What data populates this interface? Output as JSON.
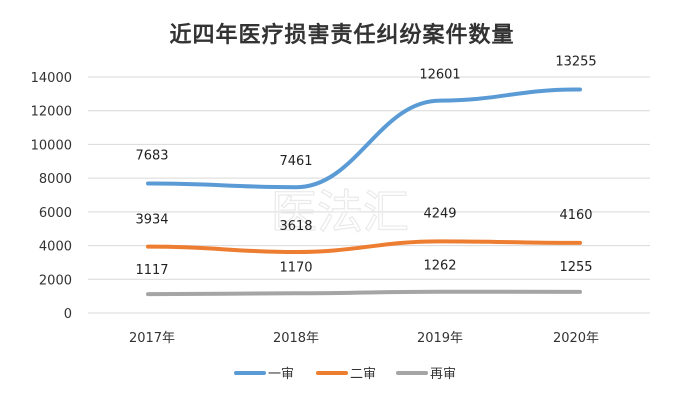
{
  "chart_data": {
    "type": "line",
    "title": "近四年医疗损害责任纠纷案件数量",
    "categories": [
      "2017年",
      "2018年",
      "2019年",
      "2020年"
    ],
    "ylim": [
      0,
      14000
    ],
    "yticks": [
      0,
      2000,
      4000,
      6000,
      8000,
      10000,
      12000,
      14000
    ],
    "grid": true,
    "legend_position": "bottom",
    "series": [
      {
        "name": "一审",
        "color": "#5b9bd5",
        "values": [
          7683,
          7461,
          12601,
          13255
        ]
      },
      {
        "name": "二审",
        "color": "#ed7d31",
        "values": [
          3934,
          3618,
          4249,
          4160
        ]
      },
      {
        "name": "再审",
        "color": "#a5a5a5",
        "values": [
          1117,
          1170,
          1262,
          1255
        ]
      }
    ]
  },
  "watermark": {
    "text": "医法汇"
  }
}
